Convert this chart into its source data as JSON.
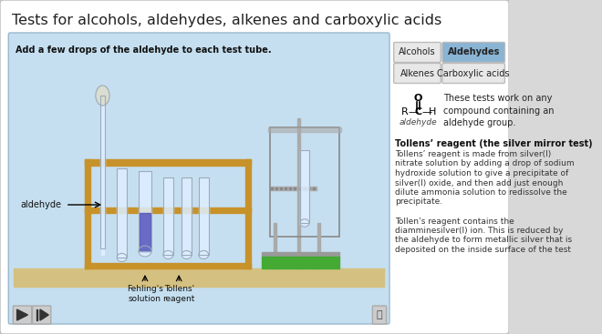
{
  "title": "Tests for alcohols, aldehydes, alkenes and carboxylic acids",
  "title_fontsize": 11.5,
  "outer_bg": "#d8d8d8",
  "card_bg": "#ffffff",
  "panel_bg": "#c5dff0",
  "panel_instruction": "Add a few drops of the aldehyde to each test tube.",
  "tab_active_color": "#8ab4d4",
  "tab_inactive_color": "#e8e8e8",
  "tab_border": "#bbbbbb",
  "aldehyde_label": "aldehyde",
  "fehlings_label": "Fehling's\nsolution",
  "tollens_label": "Tollens'\nreagent",
  "right_panel_text_bold": "Tollens’ reagent (the silver mirror test)",
  "right_panel_text": "Tollens’ reagent is made from silver(I)\nnitrate solution by adding a drop of sodium\nhydroxide solution to give a precipitate of\nsilver(I) oxide, and then add just enough\ndilute ammonia solution to redissolve the\nprecipitate.\n\nTollen’s reagent contains the\ndiamminesilver(I) ion. This is reduced by\nthe aldehyde to form metallic silver that is\ndeposited on the inside surface of the test",
  "aldehyde_group_text": "These tests work on any\ncompound containing an\naldehyde group.",
  "wood_color": "#c8922a",
  "bench_color": "#d4aa55",
  "fehlings_liquid": "#5555bb",
  "glass_color": "#ddeeff",
  "glass_edge": "#99aabb",
  "hotplate_green": "#44aa33",
  "beaker_water": "#c8e0f0",
  "stand_color": "#aaaaaa",
  "bench_floor_color": "#d4c080"
}
